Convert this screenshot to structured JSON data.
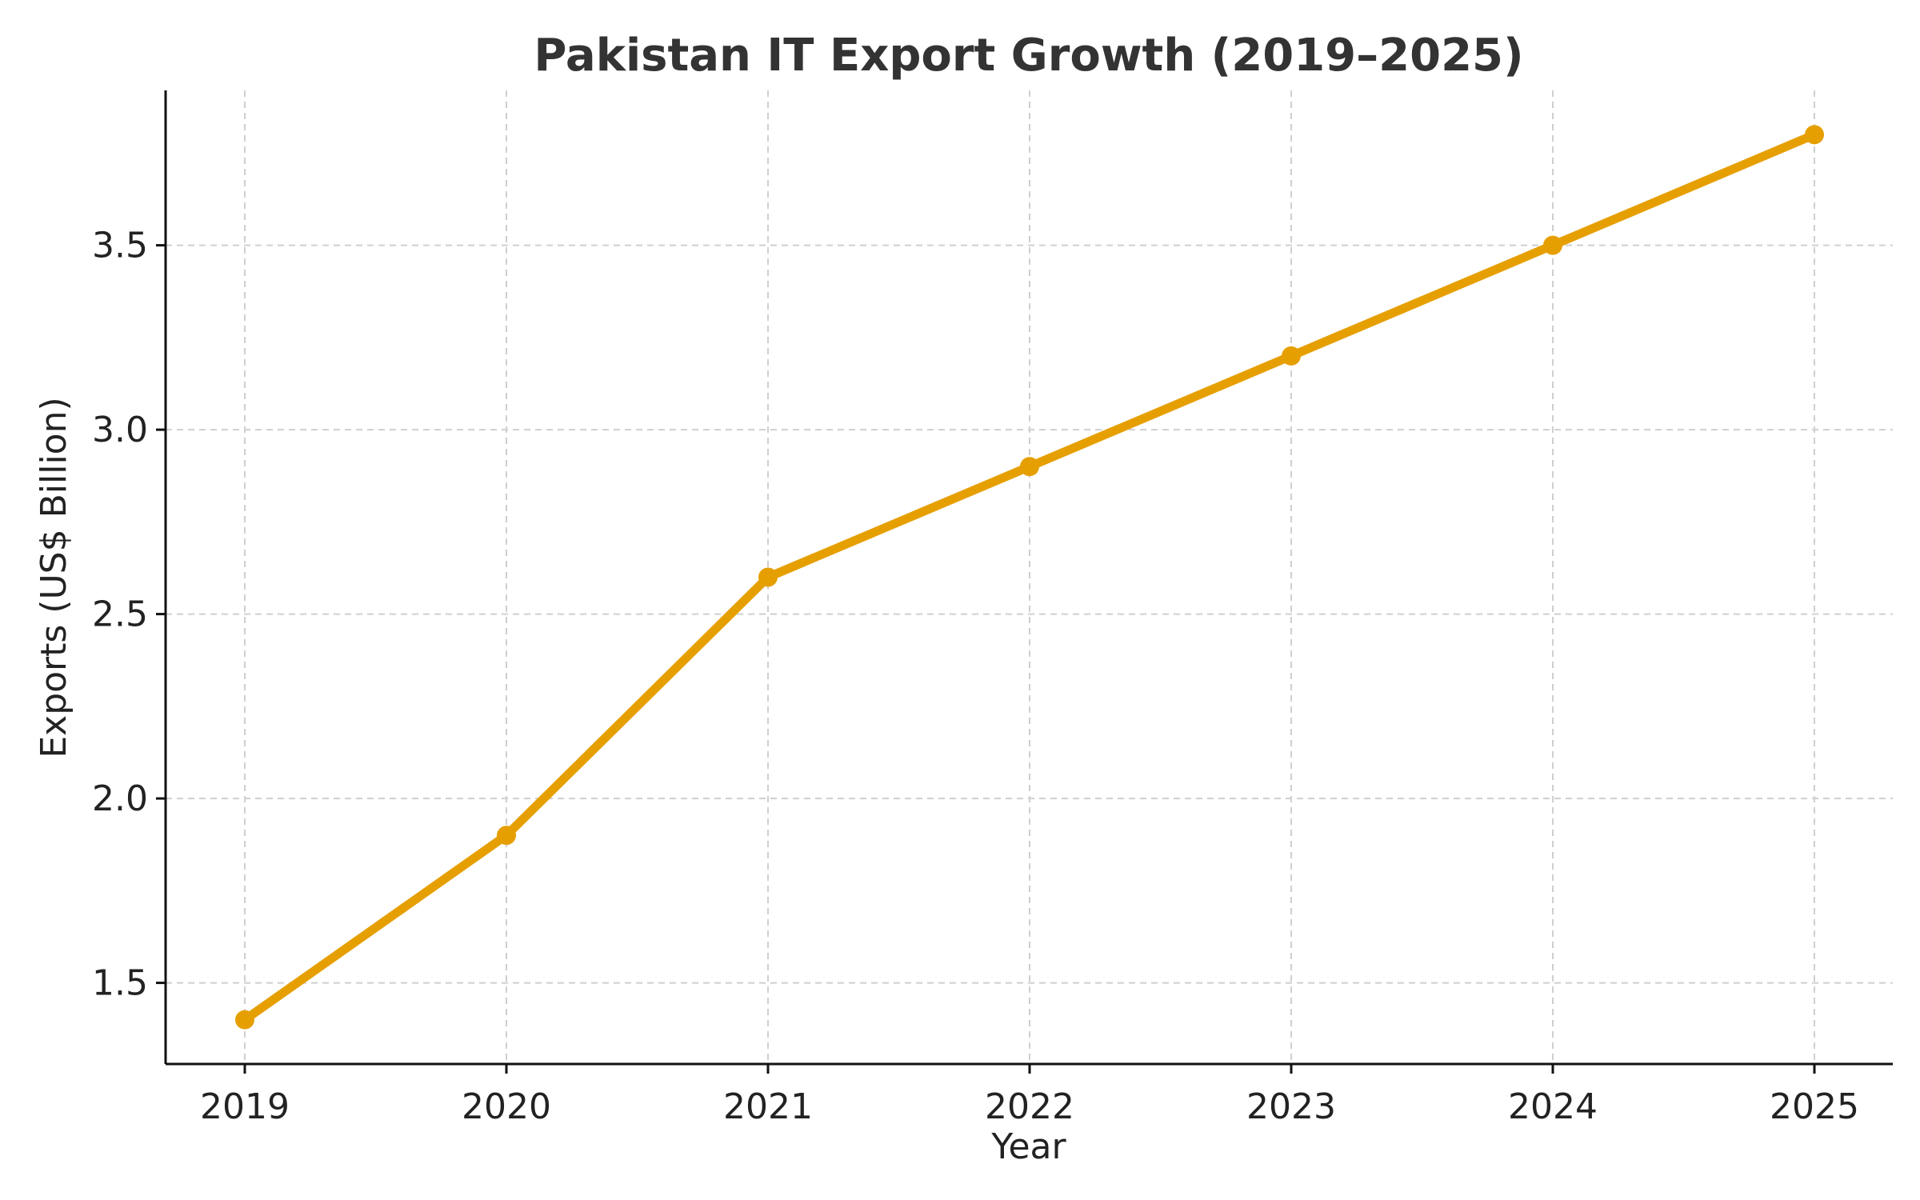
{
  "chart_data": {
    "type": "line",
    "title": "Pakistan IT Export Growth (2019–2025)",
    "xlabel": "Year",
    "ylabel": "Exports (US$ Billion)",
    "categories": [
      "2019",
      "2020",
      "2021",
      "2022",
      "2023",
      "2024",
      "2025"
    ],
    "series": [
      {
        "values": [
          1.4,
          1.9,
          2.6,
          2.9,
          3.2,
          3.5,
          3.8
        ],
        "color": "#E69F00",
        "marker": "circle"
      }
    ],
    "ylim": [
      1.28,
      3.92
    ],
    "yticks": [
      1.5,
      2.0,
      2.5,
      3.0,
      3.5
    ],
    "ytick_labels": [
      "1.5",
      "2.0",
      "2.5",
      "3.0",
      "3.5"
    ],
    "grid": true,
    "grid_style": "dashed",
    "legend": "none"
  }
}
